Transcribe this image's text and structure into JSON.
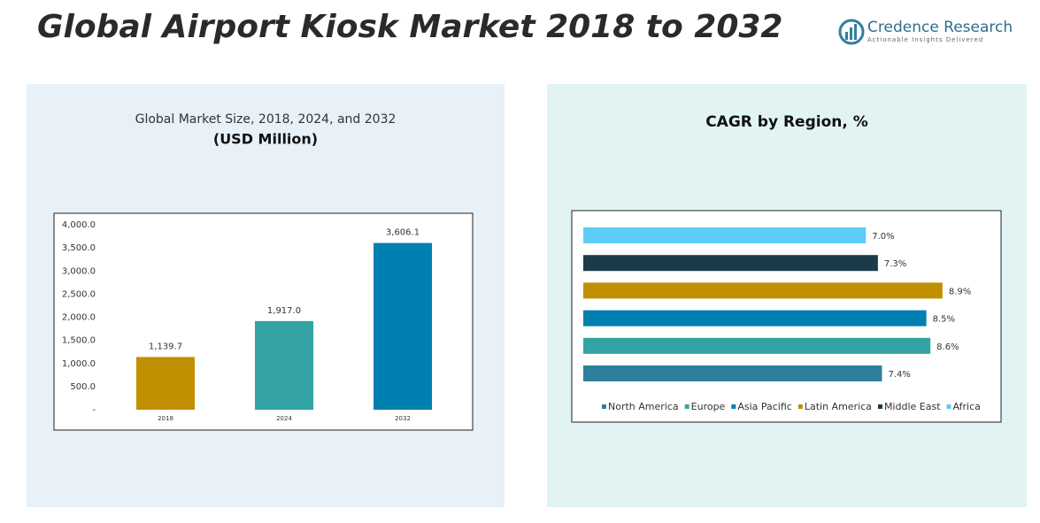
{
  "header": {
    "title": "Global Airport Kiosk Market 2018 to 2032",
    "brand": "Credence Research",
    "tagline": "Actionable Insights Delivered"
  },
  "chart_data": [
    {
      "type": "bar",
      "title": "Global Market Size, 2018, 2024, and 2032",
      "subtitle": "(USD Million)",
      "categories": [
        "2018",
        "2024",
        "2032"
      ],
      "values": [
        1139.7,
        1917.0,
        3606.1
      ],
      "value_labels": [
        "1,139.7",
        "1,917.0",
        "3,606.1"
      ],
      "colors": [
        "#c09000",
        "#33a3a3",
        "#0080b0"
      ],
      "ylim": [
        0,
        4000
      ],
      "yticks": [
        {
          "value": 0,
          "label": "-"
        },
        {
          "value": 500,
          "label": "500.0"
        },
        {
          "value": 1000,
          "label": "1,000.0"
        },
        {
          "value": 1500,
          "label": "1,500.0"
        },
        {
          "value": 2000,
          "label": "2,000.0"
        },
        {
          "value": 2500,
          "label": "2,500.0"
        },
        {
          "value": 3000,
          "label": "3,000.0"
        },
        {
          "value": 3500,
          "label": "3,500.0"
        },
        {
          "value": 4000,
          "label": "4,000.0"
        }
      ]
    },
    {
      "type": "hbar",
      "title": "CAGR by Region, %",
      "categories": [
        "North America",
        "Europe",
        "Asia Pacific",
        "Latin America",
        "Middle East",
        "Africa"
      ],
      "values": [
        7.4,
        8.6,
        8.5,
        8.9,
        7.3,
        7.0
      ],
      "value_labels": [
        "7.4%",
        "8.6%",
        "8.5%",
        "8.9%",
        "7.3%",
        "7.0%"
      ],
      "colors": [
        "#2f7f9c",
        "#33a3a3",
        "#0080b0",
        "#c09000",
        "#1b3b48",
        "#5bcdf7"
      ]
    }
  ]
}
